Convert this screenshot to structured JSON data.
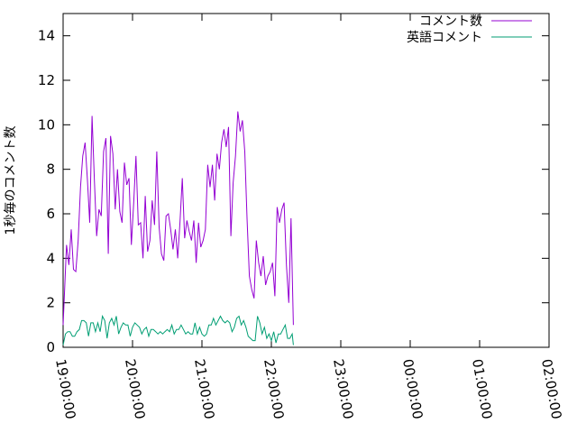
{
  "chart_data": {
    "type": "line",
    "title": "",
    "xlabel": "",
    "ylabel": "1秒毎のコメント数",
    "xlim": [
      "19:00:00",
      "02:00:00"
    ],
    "ylim": [
      0,
      15
    ],
    "x_ticks": [
      "19:00:00",
      "20:00:00",
      "21:00:00",
      "22:00:00",
      "23:00:00",
      "00:00:00",
      "01:00:00",
      "02:00:00"
    ],
    "y_ticks": [
      "0",
      "2",
      "4",
      "6",
      "8",
      "10",
      "12",
      "14"
    ],
    "grid": false,
    "legend_position": "top-right",
    "x_minutes_start": 0,
    "series": [
      {
        "name": "コメント数",
        "color": "#9400d3",
        "points": [
          [
            0,
            1.0
          ],
          [
            1.5,
            2.8
          ],
          [
            3,
            4.6
          ],
          [
            5,
            3.7
          ],
          [
            7,
            5.3
          ],
          [
            9,
            3.5
          ],
          [
            11,
            3.4
          ],
          [
            13,
            4.8
          ],
          [
            15,
            7.2
          ],
          [
            17,
            8.6
          ],
          [
            19,
            9.2
          ],
          [
            21,
            7.5
          ],
          [
            23,
            5.6
          ],
          [
            25,
            10.4
          ],
          [
            27,
            7.5
          ],
          [
            29,
            5.0
          ],
          [
            31,
            6.2
          ],
          [
            33,
            5.9
          ],
          [
            35,
            8.8
          ],
          [
            37,
            9.4
          ],
          [
            39,
            4.2
          ],
          [
            41,
            9.5
          ],
          [
            43,
            8.7
          ],
          [
            45,
            6.2
          ],
          [
            47,
            8.0
          ],
          [
            49,
            6.1
          ],
          [
            51,
            5.6
          ],
          [
            53,
            8.3
          ],
          [
            55,
            7.3
          ],
          [
            57,
            7.6
          ],
          [
            59,
            4.6
          ],
          [
            61,
            6.5
          ],
          [
            63,
            8.6
          ],
          [
            65,
            5.5
          ],
          [
            67,
            5.6
          ],
          [
            69,
            4.0
          ],
          [
            71,
            6.8
          ],
          [
            73,
            4.3
          ],
          [
            75,
            4.8
          ],
          [
            77,
            6.6
          ],
          [
            79,
            5.5
          ],
          [
            81,
            8.8
          ],
          [
            83,
            5.4
          ],
          [
            85,
            4.2
          ],
          [
            87,
            3.9
          ],
          [
            89,
            5.9
          ],
          [
            91,
            6.0
          ],
          [
            93,
            5.3
          ],
          [
            95,
            4.4
          ],
          [
            97,
            5.3
          ],
          [
            99,
            4.0
          ],
          [
            101,
            5.6
          ],
          [
            103,
            7.6
          ],
          [
            105,
            4.9
          ],
          [
            107,
            5.7
          ],
          [
            109,
            5.2
          ],
          [
            111,
            4.8
          ],
          [
            113,
            5.7
          ],
          [
            115,
            3.8
          ],
          [
            117,
            5.6
          ],
          [
            119,
            4.5
          ],
          [
            121,
            4.8
          ],
          [
            123,
            5.3
          ],
          [
            125,
            8.2
          ],
          [
            127,
            7.2
          ],
          [
            129,
            8.2
          ],
          [
            131,
            6.6
          ],
          [
            133,
            8.7
          ],
          [
            135,
            8.0
          ],
          [
            137,
            9.2
          ],
          [
            139,
            9.8
          ],
          [
            141,
            9.0
          ],
          [
            143,
            9.9
          ],
          [
            145,
            5.0
          ],
          [
            147,
            7.4
          ],
          [
            149,
            8.6
          ],
          [
            151,
            10.6
          ],
          [
            153,
            9.7
          ],
          [
            155,
            10.2
          ],
          [
            157,
            8.8
          ],
          [
            159,
            5.8
          ],
          [
            161,
            3.2
          ],
          [
            163,
            2.6
          ],
          [
            165,
            2.2
          ],
          [
            167,
            4.8
          ],
          [
            169,
            3.8
          ],
          [
            171,
            3.2
          ],
          [
            173,
            4.1
          ],
          [
            175,
            2.8
          ],
          [
            177,
            3.2
          ],
          [
            179,
            3.4
          ],
          [
            181,
            3.8
          ],
          [
            183,
            2.3
          ],
          [
            185,
            6.3
          ],
          [
            187,
            5.6
          ],
          [
            189,
            6.2
          ],
          [
            191,
            6.5
          ],
          [
            193,
            3.7
          ],
          [
            195,
            2.0
          ],
          [
            197,
            5.8
          ],
          [
            199,
            1.0
          ]
        ]
      },
      {
        "name": "英語コメント",
        "color": "#009e73",
        "points": [
          [
            0,
            0.1
          ],
          [
            2,
            0.6
          ],
          [
            4,
            0.7
          ],
          [
            6,
            0.7
          ],
          [
            8,
            0.5
          ],
          [
            10,
            0.5
          ],
          [
            12,
            0.7
          ],
          [
            14,
            0.8
          ],
          [
            16,
            1.2
          ],
          [
            18,
            1.2
          ],
          [
            20,
            1.1
          ],
          [
            22,
            0.5
          ],
          [
            24,
            1.1
          ],
          [
            26,
            1.1
          ],
          [
            28,
            0.7
          ],
          [
            30,
            1.1
          ],
          [
            32,
            0.7
          ],
          [
            34,
            1.4
          ],
          [
            36,
            1.2
          ],
          [
            38,
            0.4
          ],
          [
            40,
            1.1
          ],
          [
            42,
            1.3
          ],
          [
            44,
            1.0
          ],
          [
            46,
            1.4
          ],
          [
            48,
            0.6
          ],
          [
            50,
            0.9
          ],
          [
            52,
            1.1
          ],
          [
            54,
            1.0
          ],
          [
            56,
            1.0
          ],
          [
            58,
            0.5
          ],
          [
            60,
            0.9
          ],
          [
            62,
            1.1
          ],
          [
            64,
            1.0
          ],
          [
            66,
            0.9
          ],
          [
            68,
            0.6
          ],
          [
            70,
            0.8
          ],
          [
            72,
            0.9
          ],
          [
            74,
            0.5
          ],
          [
            76,
            0.8
          ],
          [
            78,
            0.8
          ],
          [
            80,
            0.7
          ],
          [
            82,
            0.6
          ],
          [
            84,
            0.7
          ],
          [
            86,
            0.6
          ],
          [
            88,
            0.7
          ],
          [
            90,
            0.8
          ],
          [
            92,
            0.7
          ],
          [
            94,
            1.0
          ],
          [
            96,
            0.6
          ],
          [
            98,
            0.8
          ],
          [
            100,
            0.8
          ],
          [
            102,
            1.0
          ],
          [
            104,
            0.8
          ],
          [
            106,
            0.6
          ],
          [
            108,
            0.7
          ],
          [
            110,
            0.6
          ],
          [
            112,
            0.6
          ],
          [
            114,
            1.1
          ],
          [
            116,
            0.6
          ],
          [
            118,
            0.9
          ],
          [
            120,
            0.6
          ],
          [
            122,
            0.5
          ],
          [
            124,
            0.6
          ],
          [
            126,
            1.0
          ],
          [
            128,
            1.0
          ],
          [
            130,
            1.3
          ],
          [
            132,
            1.0
          ],
          [
            134,
            1.2
          ],
          [
            136,
            1.4
          ],
          [
            138,
            1.2
          ],
          [
            140,
            1.1
          ],
          [
            142,
            1.2
          ],
          [
            144,
            1.1
          ],
          [
            146,
            0.7
          ],
          [
            148,
            0.9
          ],
          [
            150,
            1.3
          ],
          [
            152,
            1.4
          ],
          [
            154,
            1.0
          ],
          [
            156,
            1.2
          ],
          [
            158,
            0.9
          ],
          [
            160,
            0.5
          ],
          [
            162,
            0.4
          ],
          [
            164,
            0.3
          ],
          [
            166,
            0.3
          ],
          [
            168,
            1.4
          ],
          [
            170,
            1.1
          ],
          [
            172,
            0.6
          ],
          [
            174,
            0.9
          ],
          [
            176,
            0.4
          ],
          [
            178,
            0.6
          ],
          [
            180,
            0.3
          ],
          [
            182,
            0.7
          ],
          [
            184,
            0.2
          ],
          [
            186,
            0.6
          ],
          [
            188,
            0.6
          ],
          [
            190,
            0.8
          ],
          [
            192,
            1.0
          ],
          [
            194,
            0.4
          ],
          [
            196,
            0.4
          ],
          [
            198,
            0.6
          ],
          [
            199,
            0.1
          ]
        ]
      }
    ]
  }
}
